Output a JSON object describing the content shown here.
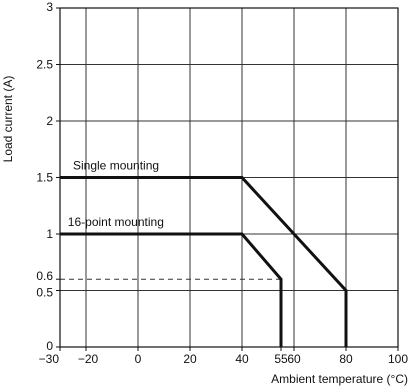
{
  "chart_data": {
    "type": "line",
    "xlabel": "Ambient temperature (°C)",
    "ylabel": "Load current (A)",
    "xlim": [
      -30,
      100
    ],
    "ylim": [
      0,
      3
    ],
    "x_ticks": [
      -30,
      -20,
      0,
      20,
      40,
      55,
      60,
      80,
      100
    ],
    "x_tick_labels": [
      "−30",
      "−20",
      "0",
      "20",
      "40",
      "55",
      "60",
      "80",
      "100"
    ],
    "y_ticks": [
      0,
      0.5,
      0.6,
      1,
      1.5,
      2,
      2.5,
      3
    ],
    "y_tick_labels": [
      "0",
      "0.5",
      "0.6",
      "1",
      "1.5",
      "2",
      "2.5",
      "3"
    ],
    "grid": true,
    "series": [
      {
        "name": "Single mounting",
        "x": [
          -30,
          40,
          80,
          80
        ],
        "y": [
          1.5,
          1.5,
          0.5,
          0
        ]
      },
      {
        "name": "16-point mounting",
        "x": [
          -30,
          40,
          55,
          55
        ],
        "y": [
          1,
          1,
          0.6,
          0
        ]
      }
    ],
    "reference_line": {
      "y": 0.6,
      "x_from": -30,
      "x_to": 55,
      "style": "dashed"
    }
  }
}
